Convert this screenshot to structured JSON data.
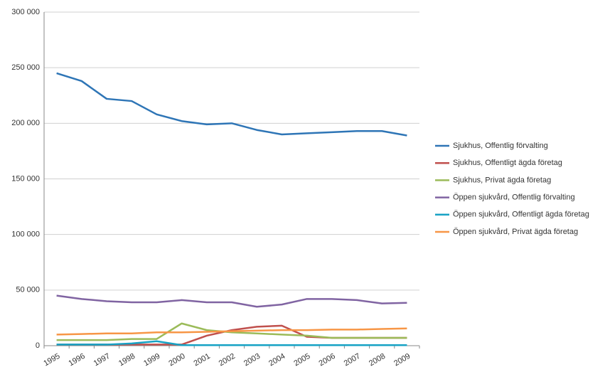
{
  "chart_data": {
    "type": "line",
    "categories": [
      "1995",
      "1996",
      "1997",
      "1998",
      "1999",
      "2000",
      "2001",
      "2002",
      "2003",
      "2004",
      "2005",
      "2006",
      "2007",
      "2008",
      "2009"
    ],
    "series": [
      {
        "name": "Sjukhus, Offentlig förvalting",
        "color": "#2e75b6",
        "values": [
          245000,
          238000,
          222000,
          220000,
          208000,
          202000,
          199000,
          200000,
          194000,
          190000,
          191000,
          192000,
          193000,
          193000,
          189000
        ]
      },
      {
        "name": "Sjukhus, Offentligt ägda företag",
        "color": "#c0504d",
        "values": [
          1000,
          1000,
          1000,
          1000,
          1000,
          1000,
          9000,
          14000,
          17000,
          18000,
          8000,
          7000,
          7000,
          7000,
          7000
        ]
      },
      {
        "name": "Sjukhus, Privat ägda företag",
        "color": "#9bbb59",
        "values": [
          5000,
          5000,
          5000,
          6000,
          6000,
          20000,
          14000,
          12000,
          11000,
          10000,
          9000,
          7000,
          7000,
          7000,
          7000
        ]
      },
      {
        "name": "Öppen sjukvård, Offentlig förvalting",
        "color": "#8064a2",
        "values": [
          45000,
          42000,
          40000,
          39000,
          39000,
          41000,
          39000,
          39000,
          35000,
          37000,
          42000,
          42000,
          41000,
          38000,
          38500
        ]
      },
      {
        "name": "Öppen sjukvård, Offentligt ägda företag",
        "color": "#17a2c4",
        "values": [
          1000,
          1000,
          1000,
          2000,
          4000,
          500,
          500,
          500,
          500,
          500,
          500,
          500,
          500,
          500,
          500
        ]
      },
      {
        "name": "Öppen sjukvård, Privat ägda företag",
        "color": "#f79646",
        "values": [
          10000,
          10500,
          11000,
          11000,
          12000,
          12000,
          12500,
          13000,
          13500,
          14000,
          14000,
          14500,
          14500,
          15000,
          15500
        ]
      }
    ],
    "ylim": [
      0,
      300000
    ],
    "yticks": [
      {
        "value": 0,
        "label": "0"
      },
      {
        "value": 50000,
        "label": "50 000"
      },
      {
        "value": 100000,
        "label": "100 000"
      },
      {
        "value": 150000,
        "label": "150 000"
      },
      {
        "value": 200000,
        "label": "200 000"
      },
      {
        "value": 250000,
        "label": "250 000"
      },
      {
        "value": 300000,
        "label": "300 000"
      }
    ],
    "grid": true,
    "legend": "right"
  }
}
